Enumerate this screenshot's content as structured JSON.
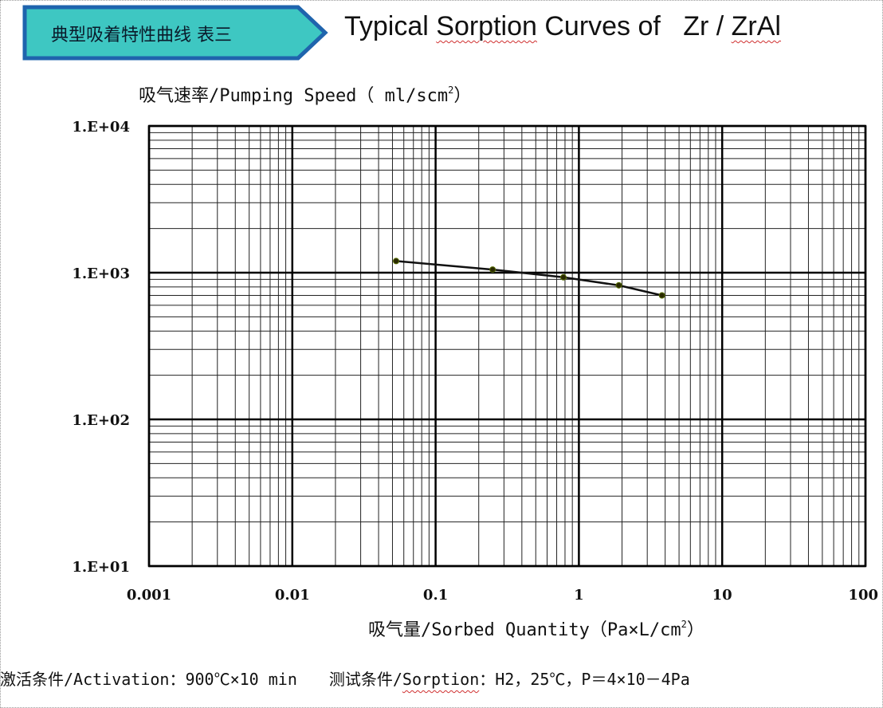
{
  "header": {
    "badge_label": "典型吸着特性曲线 表三",
    "title_prefix": "Typical ",
    "title_sorption": "Sorption",
    "title_middle": " Curves of   Zr / ",
    "title_zral": "ZrAl",
    "badge_fill": "#3ec7c2",
    "badge_border": "#1f64ad"
  },
  "chart_data": {
    "type": "line",
    "y_axis_title": "吸气速率/Pumping Speed（ ml/scm",
    "y_axis_title_sup": "2",
    "y_axis_title_end": "）",
    "x_axis_title": "吸气量/Sorbed Quantity（Pa×L/cm",
    "x_axis_title_sup": "2",
    "x_axis_title_end": "）",
    "x_scale": "log",
    "y_scale": "log",
    "xlim": [
      0.001,
      100
    ],
    "ylim": [
      10,
      10000
    ],
    "grid": true,
    "x_ticks": [
      {
        "value": 0.001,
        "label": "0.001"
      },
      {
        "value": 0.01,
        "label": "0.01"
      },
      {
        "value": 0.1,
        "label": "0.1"
      },
      {
        "value": 1,
        "label": "1"
      },
      {
        "value": 10,
        "label": "10"
      },
      {
        "value": 100,
        "label": "100"
      }
    ],
    "y_ticks": [
      {
        "value": 10,
        "label": "1.E+01"
      },
      {
        "value": 100,
        "label": "1.E+02"
      },
      {
        "value": 1000,
        "label": "1.E+03"
      },
      {
        "value": 10000,
        "label": "1.E+04"
      }
    ],
    "series": [
      {
        "x": [
          0.053,
          0.25,
          0.78,
          1.9,
          3.8
        ],
        "y": [
          1200,
          1050,
          930,
          820,
          700
        ],
        "color": "#111111"
      }
    ]
  },
  "footer": {
    "activation": "激活条件/Activation：900℃×10 min",
    "sorption_prefix": "测试条件/",
    "sorption_word": "Sorption",
    "sorption_rest": "：H2，25℃，P＝4×10－4Pa"
  }
}
